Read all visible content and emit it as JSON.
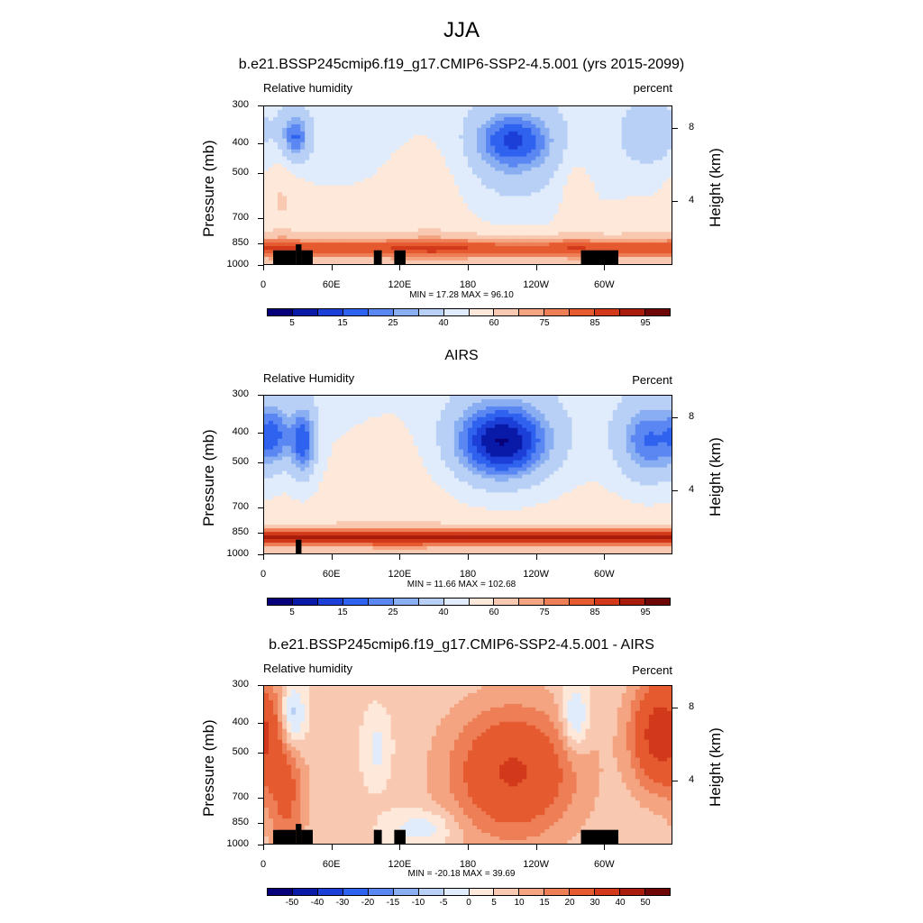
{
  "page": {
    "title": "JJA"
  },
  "axes": {
    "pressure_ticks": [
      "300",
      "400",
      "500",
      "700",
      "850",
      "1000"
    ],
    "pressure_values": [
      300,
      400,
      500,
      700,
      850,
      1000
    ],
    "lon_ticks": [
      "0",
      "60E",
      "120E",
      "180",
      "120W",
      "60W"
    ],
    "lon_values": [
      0,
      60,
      120,
      180,
      240,
      300
    ],
    "height_ticks": [
      "8",
      "4"
    ],
    "height_values_km": [
      8,
      4
    ],
    "ylabel_left": "Pressure (mb)",
    "ylabel_right": "Height (km)"
  },
  "chart_data": [
    {
      "type": "heatmap",
      "title": "b.e21.BSSP245cmip6.f19_g17.CMIP6-SSP2-4.5.001 (yrs 2015-2099)",
      "left_string": "Relative humidity",
      "right_string": "percent",
      "min_max": "MIN =  17.28  MAX =  96.10",
      "x_range": [
        0,
        360
      ],
      "y_range_mb": [
        1000,
        300
      ],
      "colorbar_labels": [
        "5",
        "15",
        "25",
        "40",
        "60",
        "75",
        "85",
        "95"
      ],
      "topography": true
    },
    {
      "type": "heatmap",
      "title": "AIRS",
      "left_string": "Relative Humidity",
      "right_string": "Percent",
      "min_max": "MIN =  11.66  MAX = 102.68",
      "x_range": [
        0,
        360
      ],
      "y_range_mb": [
        1000,
        300
      ],
      "colorbar_labels": [
        "5",
        "15",
        "25",
        "40",
        "60",
        "75",
        "85",
        "95"
      ],
      "topography": false
    },
    {
      "type": "heatmap",
      "title": "b.e21.BSSP245cmip6.f19_g17.CMIP6-SSP2-4.5.001 - AIRS",
      "left_string": "Relative humidity",
      "right_string": "Percent",
      "min_max": "MIN = -20.18  MAX =  39.69",
      "x_range": [
        0,
        360
      ],
      "y_range_mb": [
        1000,
        300
      ],
      "colorbar_labels": [
        "-50",
        "-40",
        "-30",
        "-20",
        "-15",
        "-10",
        "-5",
        "0",
        "5",
        "10",
        "15",
        "20",
        "30",
        "40",
        "50"
      ],
      "topography": true
    }
  ],
  "colors": {
    "abs_palette": [
      "#08007a",
      "#0a1aa8",
      "#1c3fd8",
      "#2f62ee",
      "#5a87f2",
      "#8aaef2",
      "#b8d0f6",
      "#e0ecfb",
      "#fde8da",
      "#f8c8b0",
      "#f4a481",
      "#ee7e56",
      "#e65a30",
      "#d2381a",
      "#a91c0c",
      "#6f0606"
    ],
    "diff_palette": [
      "#08007a",
      "#0a1aa8",
      "#1c3fd8",
      "#2f62ee",
      "#5a87f2",
      "#8aaef2",
      "#b8d0f6",
      "#e0ecfb",
      "#fde8da",
      "#f8c8b0",
      "#f4a481",
      "#ee7e56",
      "#e65a30",
      "#d2381a",
      "#a91c0c",
      "#6f0606"
    ],
    "topography": "#000000"
  }
}
